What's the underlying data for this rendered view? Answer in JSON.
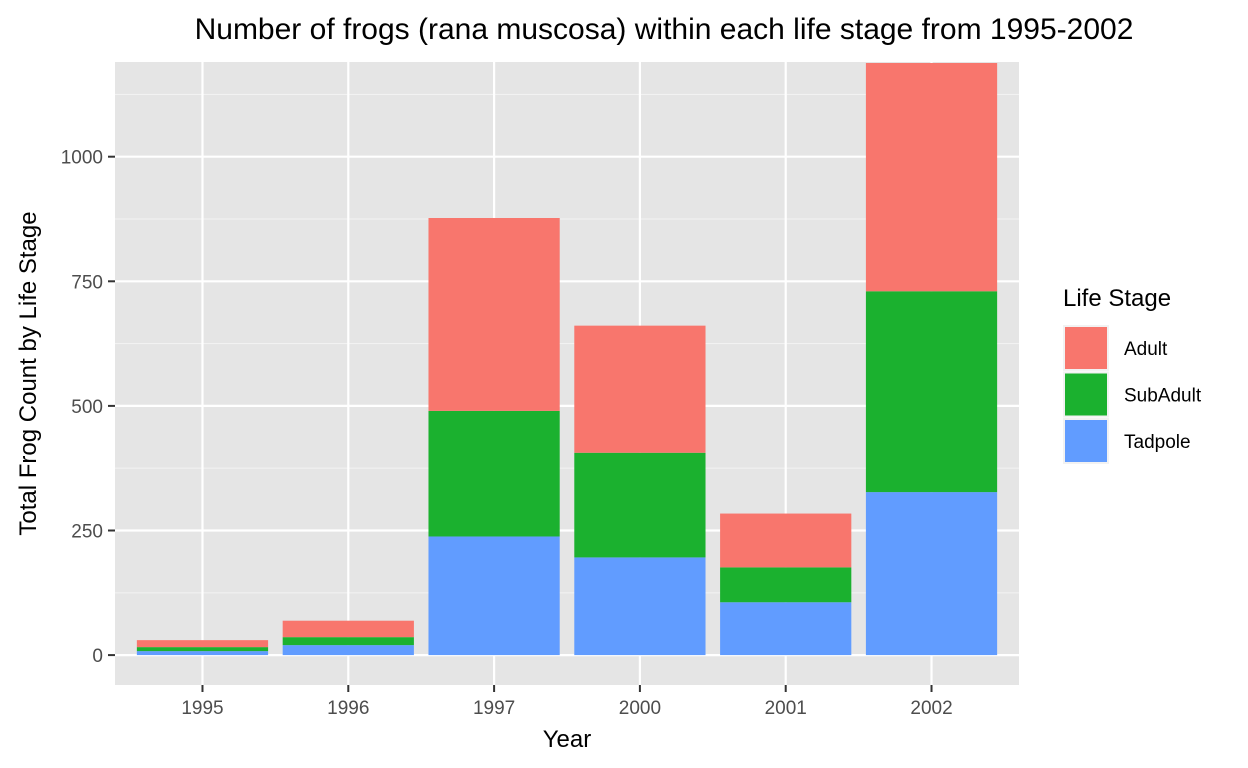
{
  "chart_data": {
    "type": "bar",
    "stacked": true,
    "title": "Number of frogs (rana muscosa) within each life stage from 1995-2002",
    "xlabel": "Year",
    "ylabel": "Total Frog Count by Life Stage",
    "categories": [
      "1995",
      "1996",
      "1997",
      "2000",
      "2001",
      "2002"
    ],
    "ylim": [
      -60,
      1190
    ],
    "yticks": [
      0,
      250,
      500,
      750,
      1000
    ],
    "ytick_labels": [
      "0",
      "250",
      "500",
      "750",
      "1000"
    ],
    "grid": true,
    "legend": {
      "title": "Life Stage",
      "position": "right"
    },
    "series": [
      {
        "name": "Tadpole",
        "color": "#619CFF",
        "values": [
          8,
          20,
          238,
          196,
          106,
          327
        ]
      },
      {
        "name": "SubAdult",
        "color": "#1BB12F",
        "values": [
          8,
          16,
          252,
          210,
          70,
          403
        ]
      },
      {
        "name": "Adult",
        "color": "#F8766D",
        "values": [
          14,
          33,
          387,
          255,
          108,
          458
        ]
      }
    ],
    "stack_order_bottom_to_top": [
      "Tadpole",
      "SubAdult",
      "Adult"
    ],
    "legend_order": [
      "Adult",
      "SubAdult",
      "Tadpole"
    ],
    "colors": {
      "panel_background": "#E5E5E5",
      "grid_major": "#FFFFFF",
      "grid_minor": "#F2F2F2",
      "tick_text": "#4D4D4D"
    }
  }
}
